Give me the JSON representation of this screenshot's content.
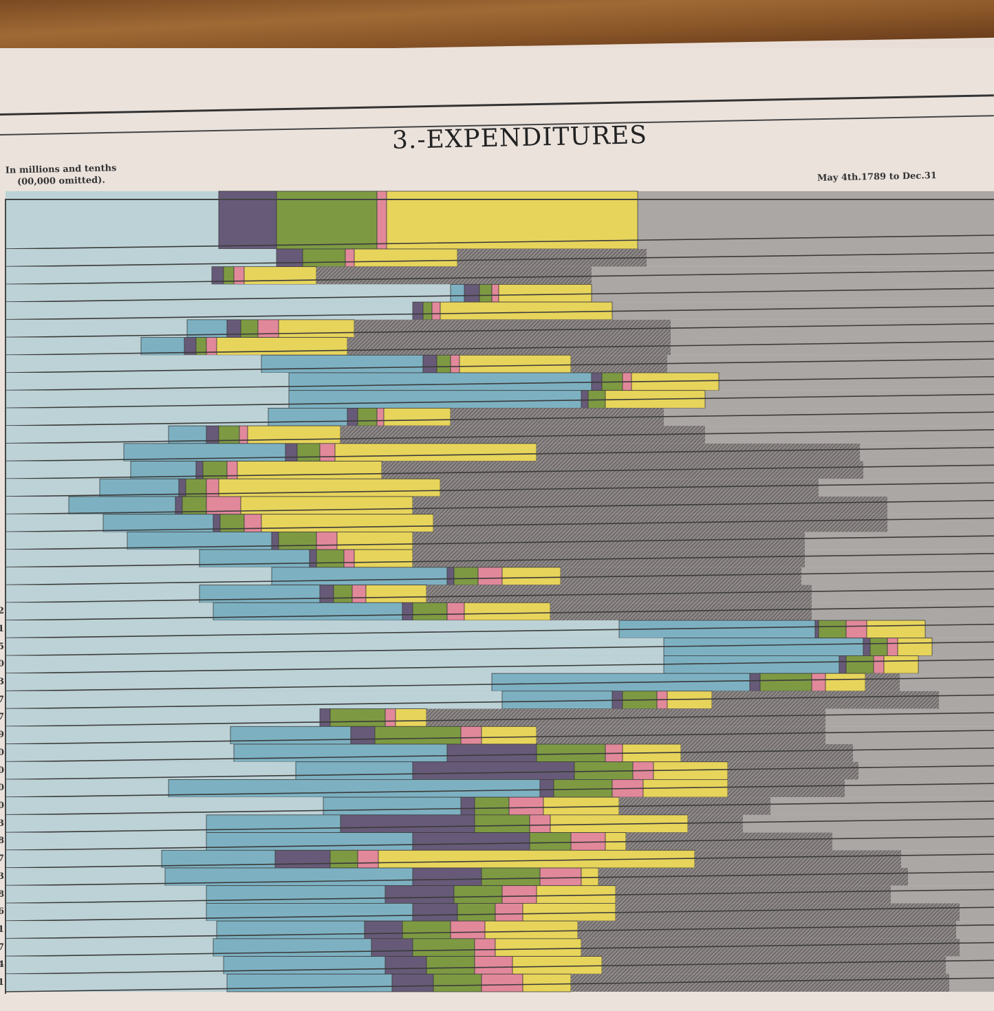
{
  "title": "3.-EXPENDITURES",
  "unit_note": [
    "In millions and tenths",
    "(00,000 omitted)."
  ],
  "period": "May 4th.1789 to Dec.31",
  "chart_data": {
    "type": "bar",
    "orientation": "horizontal stacked, rows top to bottom",
    "title": "3.-EXPENDITURES",
    "xlabel": "",
    "ylabel": "",
    "grid": true,
    "segment_order": [
      "background",
      "blue",
      "purple",
      "green",
      "pink",
      "yellow",
      "hatched-gray"
    ],
    "colors": {
      "background": "#bcd2d7",
      "blue": "#7db1c2",
      "purple": "#675a78",
      "green": "#7d9a43",
      "pink": "#e2889b",
      "yellow": "#e7d45b",
      "hatched-gray": "#7b7676",
      "rest": "#aba7a5",
      "rule": "#3a3a3a"
    },
    "rows": [
      [
        31,
        0,
        8.4,
        14.6,
        1.4,
        36.5,
        0
      ],
      [
        39.4,
        0,
        3.8,
        6.2,
        1.3,
        15,
        27.5
      ],
      [
        30,
        0,
        1.7,
        1.5,
        1.5,
        10.5,
        40
      ],
      [
        64.7,
        2,
        2.2,
        1.8,
        1,
        13.5,
        0
      ],
      [
        59.2,
        0,
        1.5,
        1.3,
        1.2,
        25,
        0
      ],
      [
        26.4,
        5.8,
        2,
        2.5,
        3,
        11,
        46
      ],
      [
        19.7,
        6.3,
        1.7,
        1.5,
        1.5,
        19,
        47
      ],
      [
        37.2,
        23.5,
        2,
        2,
        1.3,
        16.2,
        14
      ],
      [
        41.2,
        44,
        1.5,
        3,
        1.3,
        12.7,
        0
      ],
      [
        41.2,
        42.5,
        1,
        2.5,
        0,
        14.5,
        0
      ],
      [
        38.2,
        11.5,
        1.5,
        2.8,
        1,
        9.7,
        31
      ],
      [
        23.7,
        5.5,
        1.8,
        3,
        1.2,
        13.5,
        53
      ],
      [
        17.2,
        23.5,
        1.7,
        3.3,
        2.2,
        29.3,
        47
      ],
      [
        18.2,
        9.5,
        1,
        3.5,
        1.5,
        21,
        70
      ],
      [
        13.7,
        11.5,
        1,
        3,
        1.8,
        32.2,
        55
      ],
      [
        9.2,
        15.5,
        1,
        3.5,
        5,
        25,
        69
      ],
      [
        14.2,
        16,
        1,
        3.5,
        2.5,
        25,
        66
      ],
      [
        17.7,
        21,
        1,
        5.5,
        3,
        11,
        57
      ],
      [
        28.2,
        16,
        1,
        4,
        1.5,
        8.5,
        57
      ],
      [
        38.7,
        25.5,
        1,
        3.5,
        3.5,
        8.5,
        35
      ],
      [
        28.2,
        17.5,
        2,
        2.7,
        2,
        8.8,
        56
      ],
      [
        30.2,
        27.5,
        1.5,
        5,
        2.5,
        12.5,
        38
      ],
      [
        89.2,
        28.5,
        0.5,
        4,
        3,
        8.5,
        0
      ],
      [
        95.7,
        29,
        1,
        2.5,
        1.5,
        5,
        0
      ],
      [
        95.7,
        25.5,
        1,
        4,
        1.5,
        5,
        0
      ],
      [
        70.7,
        37.5,
        1.5,
        7.5,
        2,
        5.8,
        5
      ],
      [
        72.2,
        16,
        1.5,
        5,
        1.5,
        6.5,
        33
      ],
      [
        45.7,
        0,
        1.5,
        8,
        1.5,
        4.5,
        58
      ],
      [
        32.7,
        17.5,
        3.5,
        12.5,
        3,
        8,
        42
      ],
      [
        33.2,
        31,
        13,
        10,
        2.5,
        8.5,
        25
      ],
      [
        42.2,
        17,
        23.5,
        8.5,
        3,
        10.8,
        19
      ],
      [
        23.7,
        54,
        2,
        8.5,
        4.5,
        12.3,
        17
      ],
      [
        46.2,
        20,
        2,
        5,
        5,
        11,
        22
      ],
      [
        29.2,
        19.5,
        19.5,
        8,
        3,
        20,
        8
      ],
      [
        29.2,
        30,
        17,
        6,
        5,
        3,
        30
      ],
      [
        22.7,
        16.5,
        8,
        4,
        3,
        46,
        30
      ],
      [
        23.2,
        36,
        10,
        8.5,
        6,
        2.5,
        45
      ],
      [
        29.2,
        26,
        10,
        7,
        5,
        11.5,
        40
      ],
      [
        29.2,
        30,
        6.5,
        5.5,
        4,
        13.5,
        50
      ],
      [
        30.7,
        21.5,
        5.5,
        7,
        5,
        13.5,
        55
      ],
      [
        30.2,
        23,
        6,
        9,
        3,
        12.5,
        55
      ],
      [
        31.7,
        23.5,
        6,
        7,
        5.5,
        13,
        50
      ],
      [
        32.2,
        24,
        6,
        7,
        6,
        7,
        55
      ]
    ],
    "row_labels_visible": [
      "2",
      "1",
      "5",
      "0",
      "3",
      "7",
      "7",
      "9",
      "0",
      ".0",
      ".0",
      ".0",
      ".3",
      ".8",
      ".7",
      "6.3",
      "6.8",
      "8.6",
      "4.1",
      "2.7",
      "5.4",
      "25.1"
    ]
  }
}
